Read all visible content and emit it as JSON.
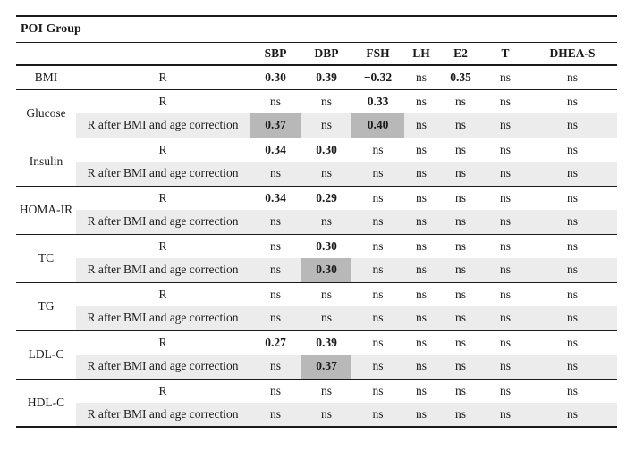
{
  "colors": {
    "rule": "#1a1a1a",
    "shaded_row": "#ececec",
    "highlight_cell": "#b8b8b8",
    "text": "#1a1a1a"
  },
  "table": {
    "group_title": "POI Group",
    "columns": [
      "SBP",
      "DBP",
      "FSH",
      "LH",
      "E2",
      "T",
      "DHEA-S"
    ],
    "not_significant_label": "ns",
    "row_labels": {
      "R": "R",
      "R_corrected": "R after BMI and age correction"
    },
    "groups": [
      {
        "name": "BMI",
        "rows": [
          {
            "type": "R",
            "values": [
              "0.30",
              "0.39",
              "−0.32",
              "ns",
              "0.35",
              "ns",
              "ns"
            ],
            "highlights": []
          }
        ]
      },
      {
        "name": "Glucose",
        "rows": [
          {
            "type": "R",
            "values": [
              "ns",
              "ns",
              "0.33",
              "ns",
              "ns",
              "ns",
              "ns"
            ],
            "highlights": []
          },
          {
            "type": "R_corrected",
            "values": [
              "0.37",
              "ns",
              "0.40",
              "ns",
              "ns",
              "ns",
              "ns"
            ],
            "highlights": [
              0,
              2
            ]
          }
        ]
      },
      {
        "name": "Insulin",
        "rows": [
          {
            "type": "R",
            "values": [
              "0.34",
              "0.30",
              "ns",
              "ns",
              "ns",
              "ns",
              "ns"
            ],
            "highlights": []
          },
          {
            "type": "R_corrected",
            "values": [
              "ns",
              "ns",
              "ns",
              "ns",
              "ns",
              "ns",
              "ns"
            ],
            "highlights": []
          }
        ]
      },
      {
        "name": "HOMA-IR",
        "rows": [
          {
            "type": "R",
            "values": [
              "0.34",
              "0.29",
              "ns",
              "ns",
              "ns",
              "ns",
              "ns"
            ],
            "highlights": []
          },
          {
            "type": "R_corrected",
            "values": [
              "ns",
              "ns",
              "ns",
              "ns",
              "ns",
              "ns",
              "ns"
            ],
            "highlights": []
          }
        ]
      },
      {
        "name": "TC",
        "rows": [
          {
            "type": "R",
            "values": [
              "ns",
              "0.30",
              "ns",
              "ns",
              "ns",
              "ns",
              "ns"
            ],
            "highlights": []
          },
          {
            "type": "R_corrected",
            "values": [
              "ns",
              "0.30",
              "ns",
              "ns",
              "ns",
              "ns",
              "ns"
            ],
            "highlights": [
              1
            ]
          }
        ]
      },
      {
        "name": "TG",
        "rows": [
          {
            "type": "R",
            "values": [
              "ns",
              "ns",
              "ns",
              "ns",
              "ns",
              "ns",
              "ns"
            ],
            "highlights": []
          },
          {
            "type": "R_corrected",
            "values": [
              "ns",
              "ns",
              "ns",
              "ns",
              "ns",
              "ns",
              "ns"
            ],
            "highlights": []
          }
        ]
      },
      {
        "name": "LDL-C",
        "rows": [
          {
            "type": "R",
            "values": [
              "0.27",
              "0.39",
              "ns",
              "ns",
              "ns",
              "ns",
              "ns"
            ],
            "highlights": []
          },
          {
            "type": "R_corrected",
            "values": [
              "ns",
              "0.37",
              "ns",
              "ns",
              "ns",
              "ns",
              "ns"
            ],
            "highlights": [
              1
            ]
          }
        ]
      },
      {
        "name": "HDL-C",
        "rows": [
          {
            "type": "R",
            "values": [
              "ns",
              "ns",
              "ns",
              "ns",
              "ns",
              "ns",
              "ns"
            ],
            "highlights": []
          },
          {
            "type": "R_corrected",
            "values": [
              "ns",
              "ns",
              "ns",
              "ns",
              "ns",
              "ns",
              "ns"
            ],
            "highlights": []
          }
        ]
      }
    ]
  }
}
